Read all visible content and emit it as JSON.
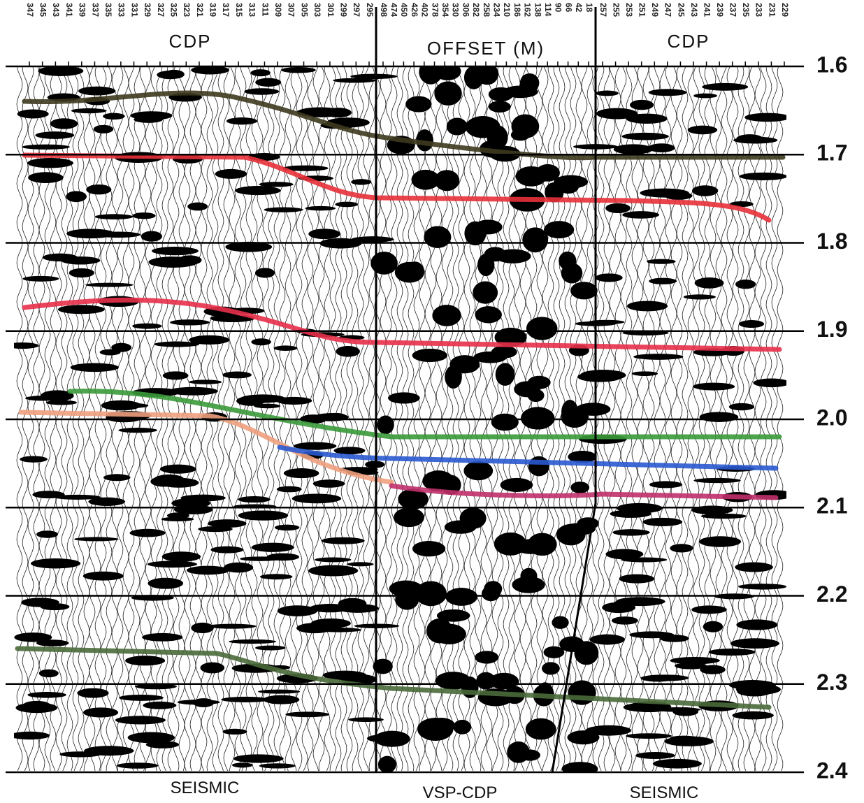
{
  "header": {
    "left": "CDP",
    "middle": "OFFSET (M)",
    "right": "CDP"
  },
  "footer": {
    "left": "SEISMIC",
    "middle": "VSP-CDP",
    "right": "SEISMIC"
  },
  "time_labels": [
    "1.6",
    "1.7",
    "1.8",
    "1.9",
    "2.0",
    "2.1",
    "2.2",
    "2.3",
    "2.4"
  ],
  "traces": {
    "left": [
      347,
      345,
      343,
      341,
      339,
      337,
      335,
      333,
      331,
      329,
      327,
      325,
      323,
      321,
      319,
      317,
      315,
      313,
      311,
      309,
      307,
      305,
      303,
      301,
      299,
      297,
      295
    ],
    "middle": [
      498,
      474,
      450,
      426,
      402,
      378,
      354,
      330,
      306,
      282,
      258,
      234,
      210,
      186,
      162,
      138,
      114,
      90,
      66,
      42,
      18
    ],
    "right": [
      257,
      255,
      253,
      251,
      249,
      247,
      245,
      243,
      241,
      239,
      237,
      235,
      233,
      231,
      229
    ]
  }
}
